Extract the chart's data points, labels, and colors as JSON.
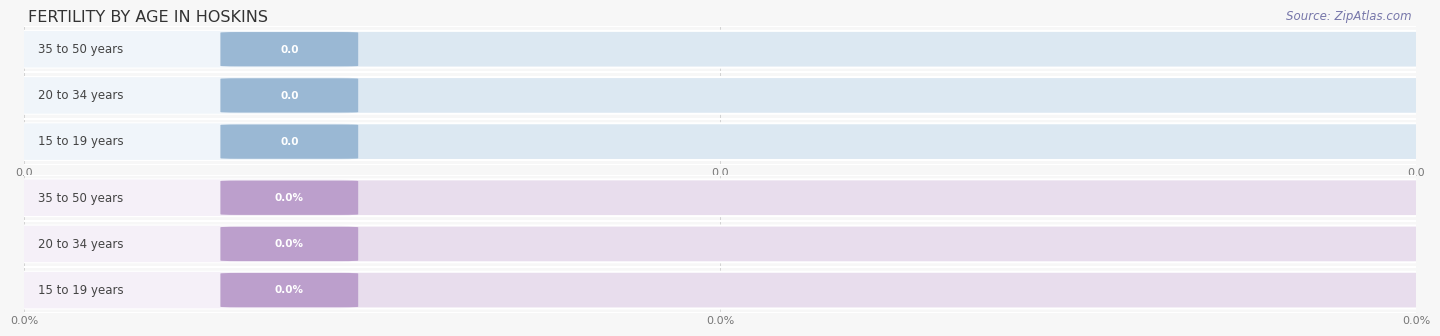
{
  "title": "FERTILITY BY AGE IN HOSKINS",
  "source_text": "Source: ZipAtlas.com",
  "top_section": {
    "categories": [
      "15 to 19 years",
      "20 to 34 years",
      "35 to 50 years"
    ],
    "values": [
      0.0,
      0.0,
      0.0
    ],
    "bar_bg_color": "#dce8f2",
    "bar_white_color": "#f0f5fa",
    "badge_color": "#9ab8d4",
    "label_color": "#444444",
    "value_color": "#ffffff",
    "tick_label": "0.0",
    "tick_labels": [
      "0.0",
      "0.0",
      "0.0"
    ],
    "row_bg_color": "#edf2f7",
    "row_sep_color": "#ffffff"
  },
  "bottom_section": {
    "categories": [
      "15 to 19 years",
      "20 to 34 years",
      "35 to 50 years"
    ],
    "values": [
      0.0,
      0.0,
      0.0
    ],
    "bar_bg_color": "#e8dded",
    "bar_white_color": "#f5f0f8",
    "badge_color": "#bc9fcc",
    "label_color": "#444444",
    "value_color": "#ffffff",
    "tick_label": "0.0%",
    "tick_labels": [
      "0.0%",
      "0.0%",
      "0.0%"
    ],
    "row_bg_color": "#f0ebf4",
    "row_sep_color": "#ffffff"
  },
  "background_color": "#f7f7f7",
  "title_color": "#333333",
  "title_fontsize": 11.5,
  "source_fontsize": 8.5,
  "label_fontsize": 8.5,
  "value_fontsize": 7.5,
  "tick_fontsize": 8,
  "fig_width": 14.06,
  "fig_height": 3.3
}
